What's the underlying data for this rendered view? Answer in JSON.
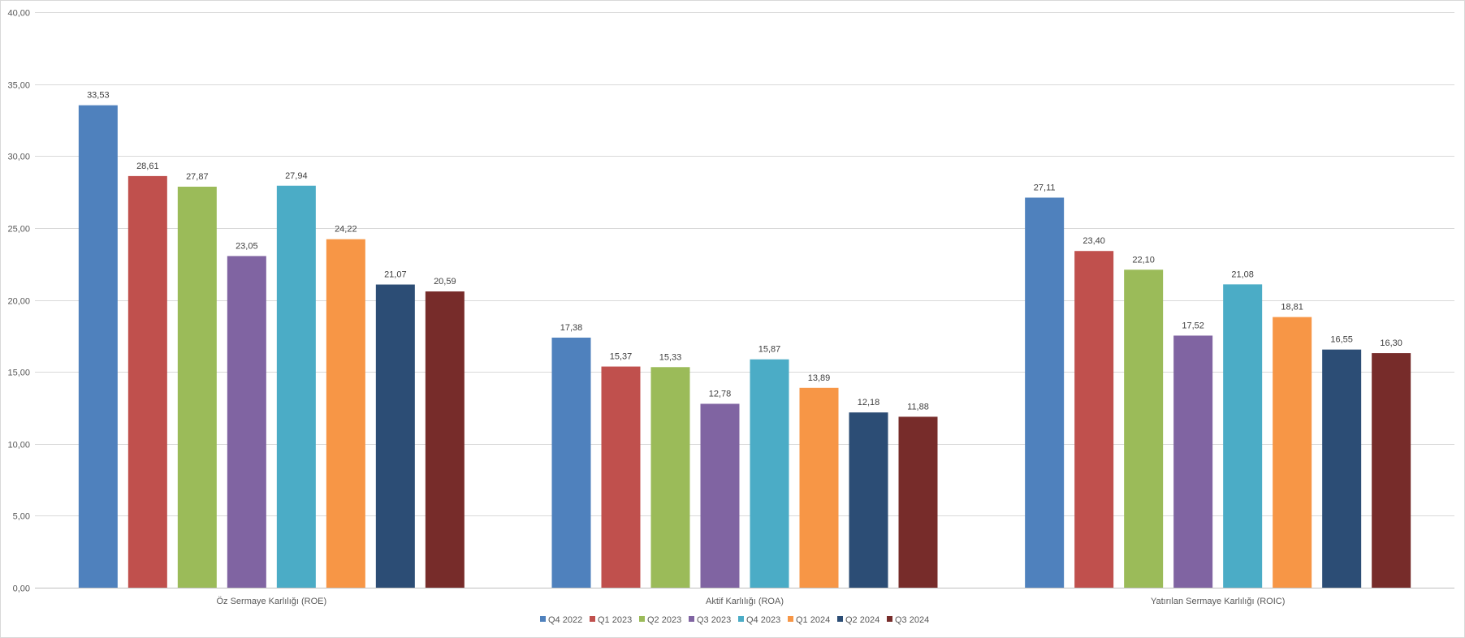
{
  "chart_data": {
    "type": "bar",
    "title": "",
    "xlabel": "",
    "ylabel": "",
    "ylim": [
      0,
      40
    ],
    "yticks": [
      "0,00",
      "5,00",
      "10,00",
      "15,00",
      "20,00",
      "25,00",
      "30,00",
      "35,00",
      "40,00"
    ],
    "ytick_values": [
      0,
      5,
      10,
      15,
      20,
      25,
      30,
      35,
      40
    ],
    "grid": true,
    "legend_position": "bottom",
    "categories": [
      "Öz Sermaye Karlılığı (ROE)",
      "Aktif Karlılığı (ROA)",
      "Yatırılan Sermaye Karlılığı (ROIC)"
    ],
    "series": [
      {
        "name": "Q4 2022",
        "color": "#4F81BD",
        "values": [
          33.53,
          17.38,
          27.11
        ],
        "labels": [
          "33,53",
          "17,38",
          "27,11"
        ]
      },
      {
        "name": "Q1 2023",
        "color": "#C0504D",
        "values": [
          28.61,
          15.37,
          23.4
        ],
        "labels": [
          "28,61",
          "15,37",
          "23,40"
        ]
      },
      {
        "name": "Q2 2023",
        "color": "#9BBB59",
        "values": [
          27.87,
          15.33,
          22.1
        ],
        "labels": [
          "27,87",
          "15,33",
          "22,10"
        ]
      },
      {
        "name": "Q3 2023",
        "color": "#8064A2",
        "values": [
          23.05,
          12.78,
          17.52
        ],
        "labels": [
          "23,05",
          "12,78",
          "17,52"
        ]
      },
      {
        "name": "Q4 2023",
        "color": "#4BACC6",
        "values": [
          27.94,
          15.87,
          21.08
        ],
        "labels": [
          "27,94",
          "15,87",
          "21,08"
        ]
      },
      {
        "name": "Q1 2024",
        "color": "#F79646",
        "values": [
          24.22,
          13.89,
          18.81
        ],
        "labels": [
          "24,22",
          "13,89",
          "18,81"
        ]
      },
      {
        "name": "Q2 2024",
        "color": "#2C4D75",
        "values": [
          21.07,
          12.18,
          16.55
        ],
        "labels": [
          "21,07",
          "12,18",
          "16,55"
        ]
      },
      {
        "name": "Q3 2024",
        "color": "#772C2A",
        "values": [
          20.59,
          11.88,
          16.3
        ],
        "labels": [
          "20,59",
          "11,88",
          "16,30"
        ]
      }
    ]
  }
}
